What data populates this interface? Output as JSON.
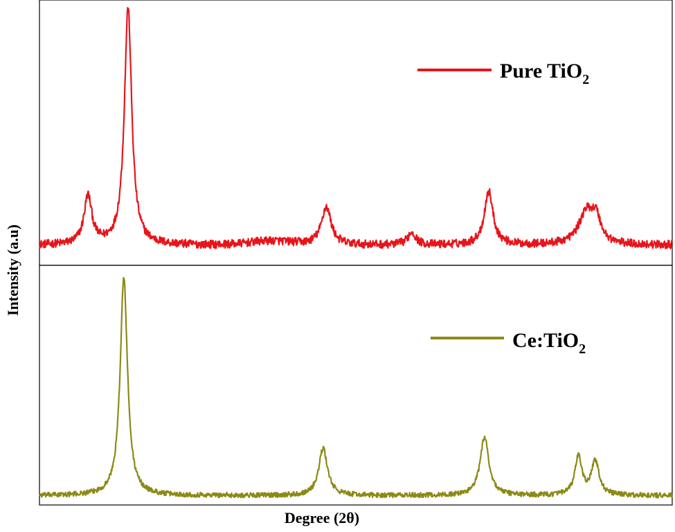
{
  "chart_data": [
    {
      "type": "line",
      "panel": "top",
      "title": "",
      "xlabel": "",
      "ylabel": "",
      "legend_position": "top-right",
      "grid": false,
      "xlim": [
        20,
        80
      ],
      "ylim": [
        0,
        100
      ],
      "series": [
        {
          "name": "Pure TiO2",
          "name_main": "Pure TiO",
          "name_sub": "2",
          "color": "#e8141a",
          "noise": 1.6,
          "baseline": 6,
          "baseline_wave": [
            {
              "center": 42,
              "height": 1.5,
              "width": 2.0
            }
          ],
          "peaks": [
            {
              "center": 24.6,
              "height": 19,
              "width": 0.45
            },
            {
              "center": 28.4,
              "height": 93,
              "width": 0.42
            },
            {
              "center": 47.2,
              "height": 15,
              "width": 0.55
            },
            {
              "center": 55.3,
              "height": 5,
              "width": 0.45
            },
            {
              "center": 62.6,
              "height": 21,
              "width": 0.5
            },
            {
              "center": 71.9,
              "height": 13,
              "width": 0.9
            },
            {
              "center": 72.8,
              "height": 8,
              "width": 0.5
            }
          ]
        }
      ]
    },
    {
      "type": "line",
      "panel": "bottom",
      "title": "",
      "xlabel": "Degree (2θ)",
      "ylabel": "Intensity (a.u)",
      "legend_position": "top-right",
      "grid": false,
      "xlim": [
        20,
        80
      ],
      "ylim": [
        0,
        100
      ],
      "series": [
        {
          "name": "Ce:TiO2",
          "name_main": "Ce:TiO",
          "name_sub": "2",
          "color": "#8c8a16",
          "noise": 1.1,
          "baseline": 2,
          "baseline_wave": [],
          "peaks": [
            {
              "center": 28.0,
              "height": 97,
              "width": 0.42
            },
            {
              "center": 46.9,
              "height": 21,
              "width": 0.5
            },
            {
              "center": 62.2,
              "height": 26,
              "width": 0.5
            },
            {
              "center": 71.1,
              "height": 17,
              "width": 0.4
            },
            {
              "center": 72.7,
              "height": 15,
              "width": 0.45
            }
          ]
        }
      ]
    }
  ]
}
